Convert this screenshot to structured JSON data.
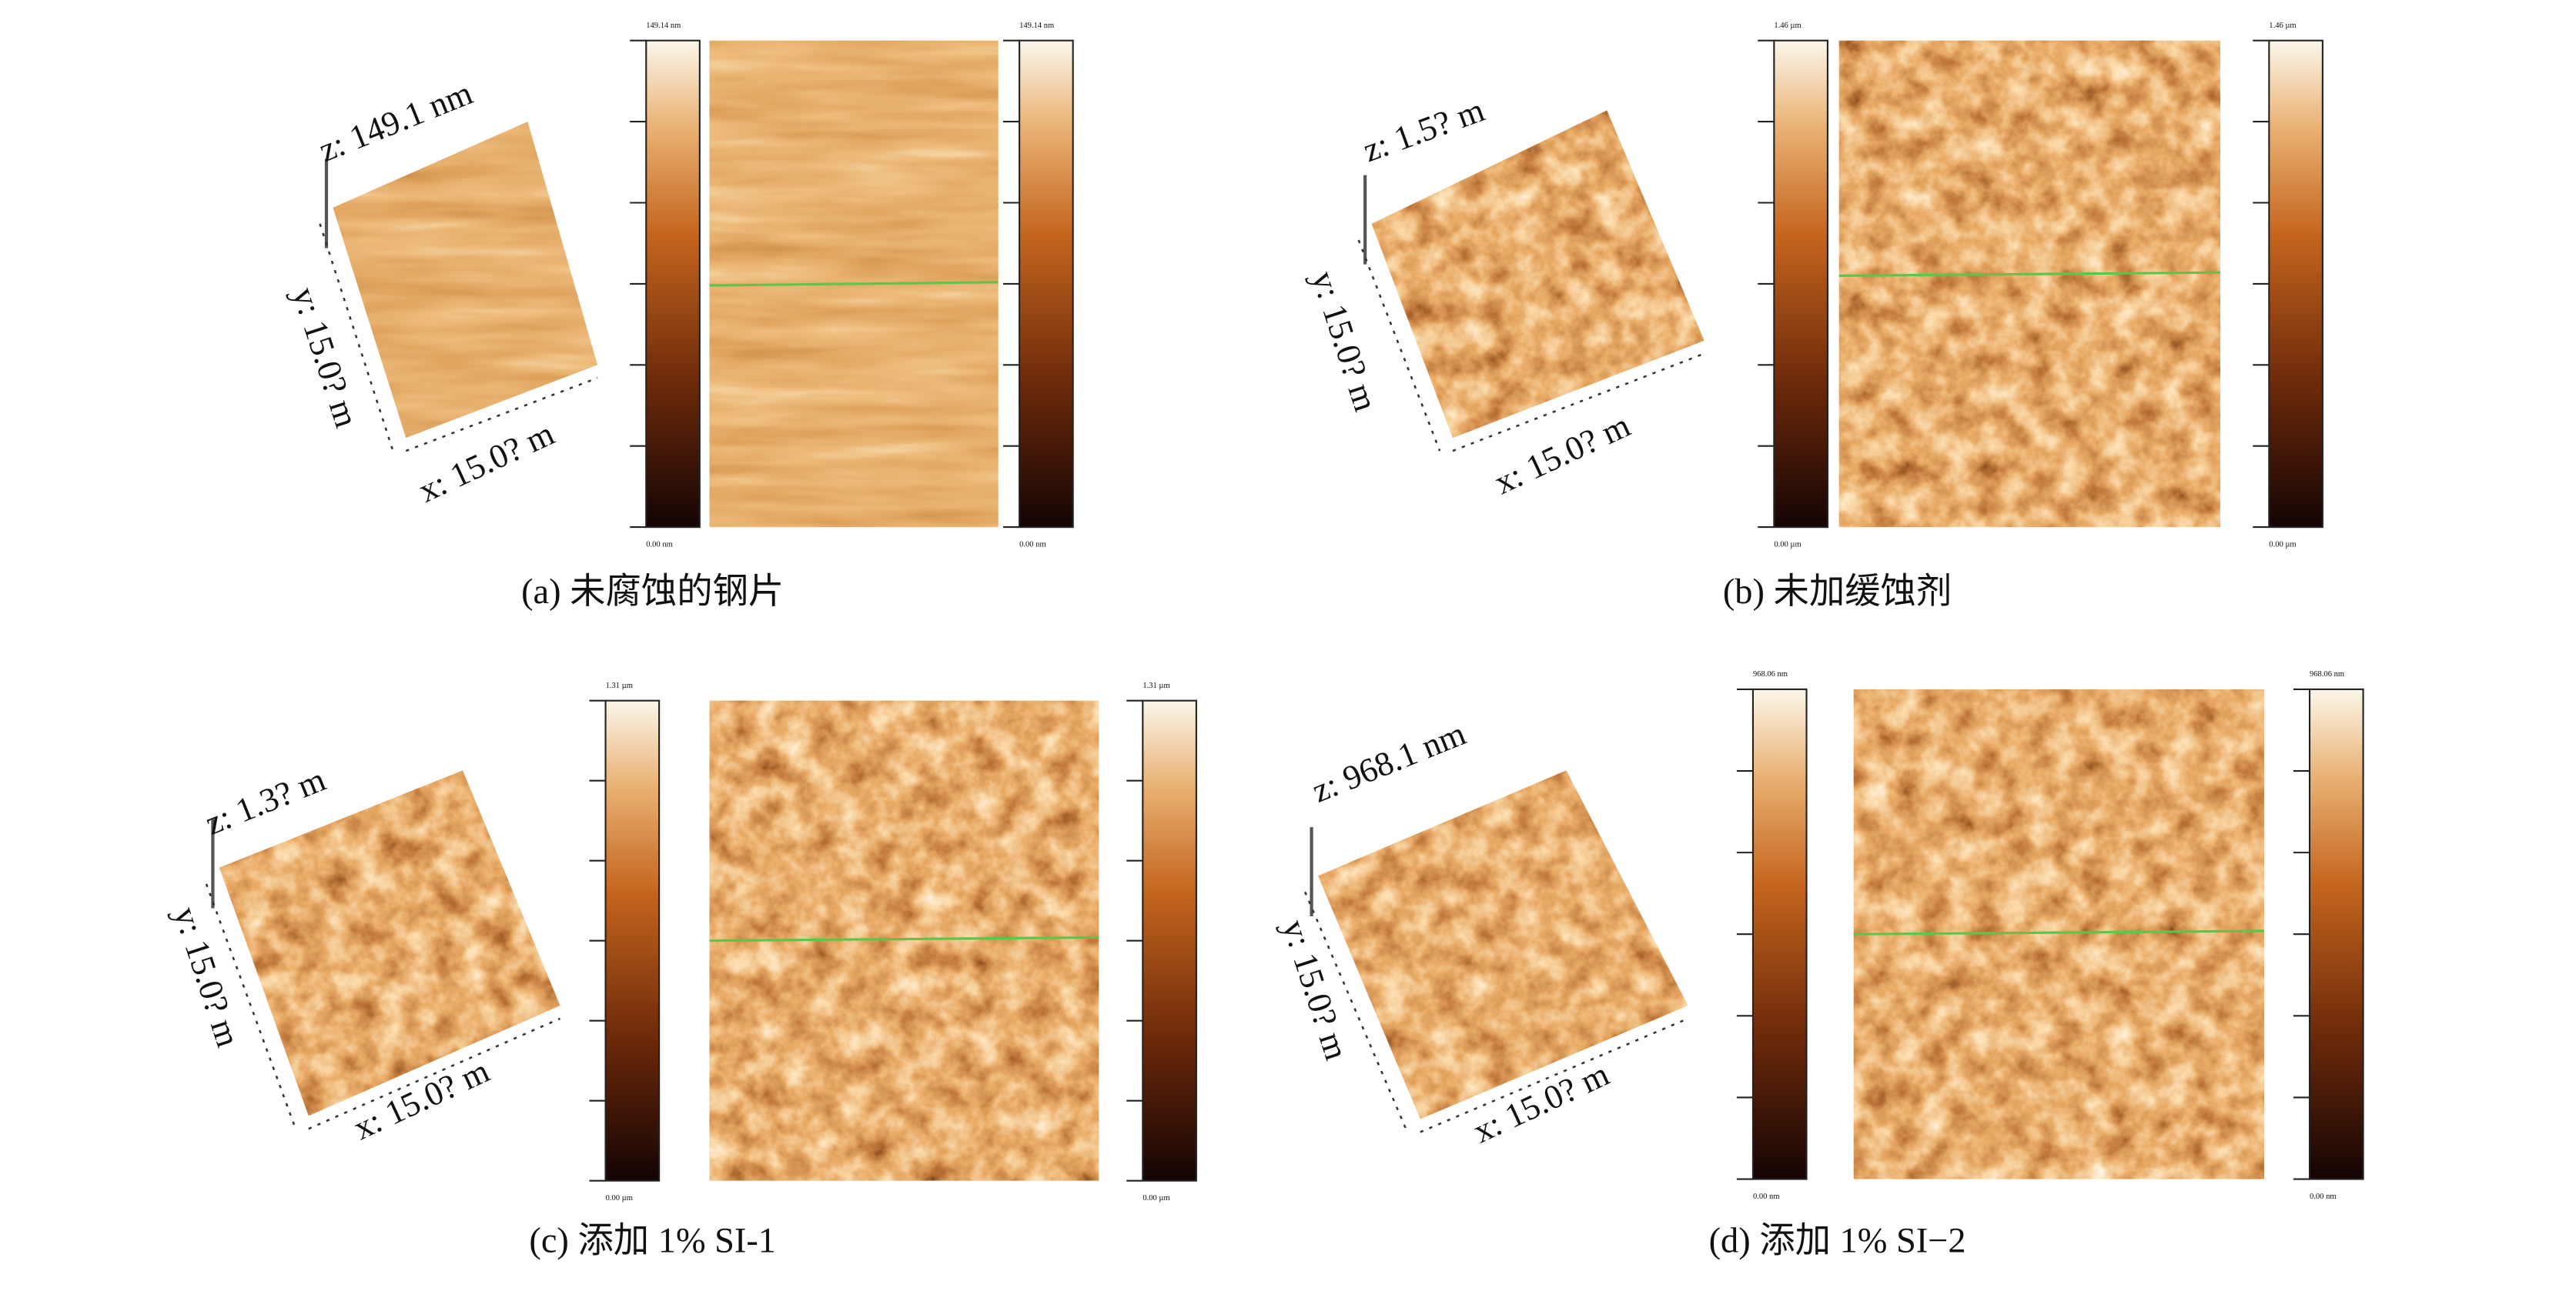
{
  "panels": [
    {
      "caption": "(a) 未腐蚀的钢片",
      "z_label": "z: 149.1 nm",
      "y_label": "y: 15.0? m",
      "x_label": "x: 15.0? m",
      "colorbar_max": "149.14 nm",
      "colorbar_min": "0.00 nm"
    },
    {
      "caption": "(b) 未加缓蚀剂",
      "z_label": "z: 1.5? m",
      "y_label": "y: 15.0? m",
      "x_label": "x: 15.0? m",
      "colorbar_max": "1.46 µm",
      "colorbar_min": "0.00 µm"
    },
    {
      "caption": "(c) 添加 1% SI-1",
      "z_label": "z: 1.3? m",
      "y_label": "y: 15.0? m",
      "x_label": "x: 15.0? m",
      "colorbar_max": "1.31 µm",
      "colorbar_min": "0.00 µm"
    },
    {
      "caption": "(d) 添加 1% SI−2",
      "z_label": "z: 968.1 nm",
      "y_label": "y: 15.0? m",
      "x_label": "x: 15.0? m",
      "colorbar_max": "968.06 nm",
      "colorbar_min": "0.00 nm"
    }
  ]
}
